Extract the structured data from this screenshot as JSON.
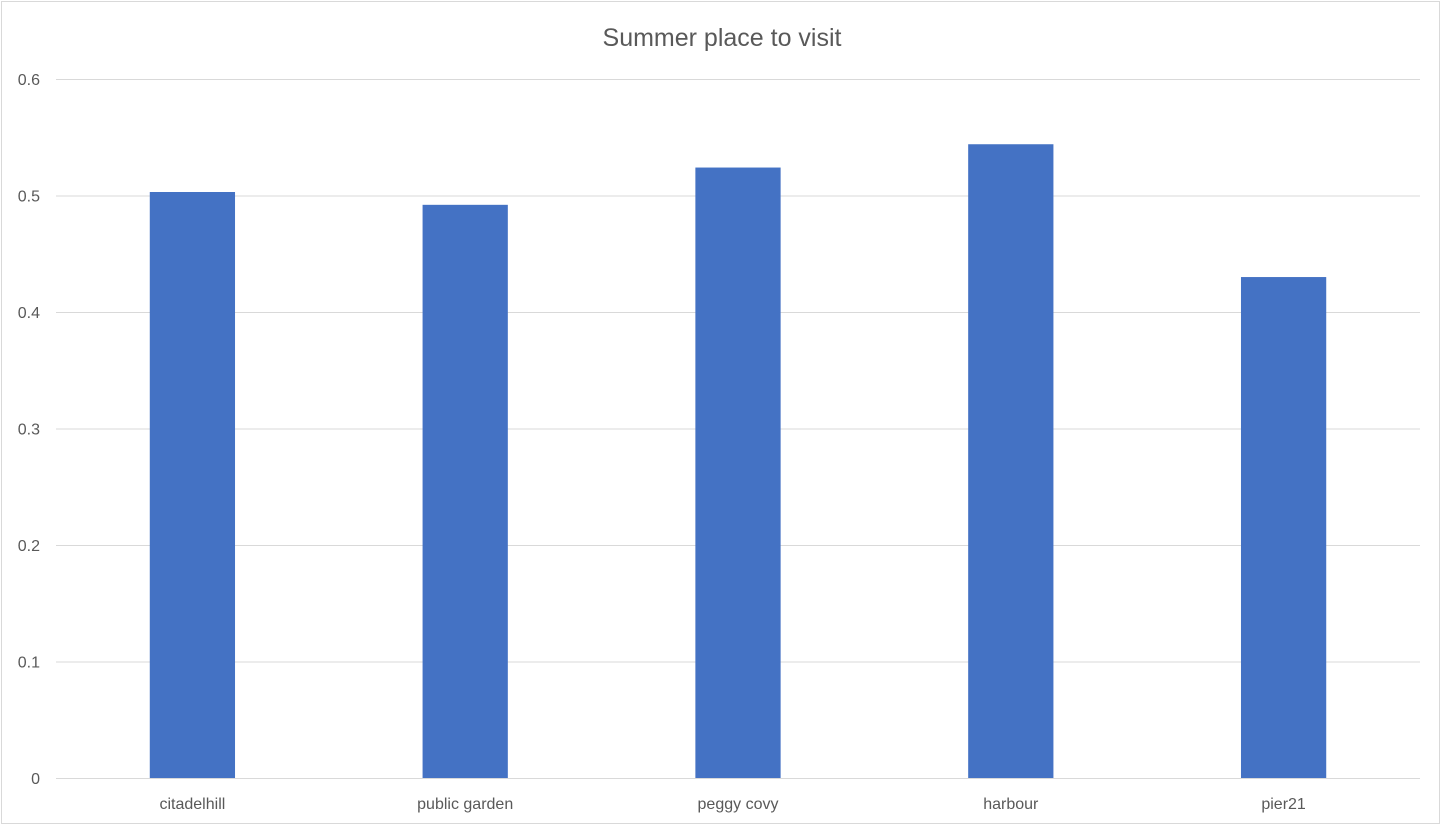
{
  "chart_data": {
    "type": "bar",
    "title": "Summer place to visit",
    "xlabel": "",
    "ylabel": "",
    "categories": [
      "citadelhill",
      "public garden",
      "peggy covy",
      "harbour",
      "pier21"
    ],
    "values": [
      0.503,
      0.492,
      0.524,
      0.544,
      0.43
    ],
    "ylim": [
      0,
      0.6
    ],
    "yticks": [
      "0",
      "0.1",
      "0.2",
      "0.3",
      "0.4",
      "0.5",
      "0.6"
    ],
    "grid": true,
    "legend": "none",
    "bar_color": "#4472C4"
  }
}
